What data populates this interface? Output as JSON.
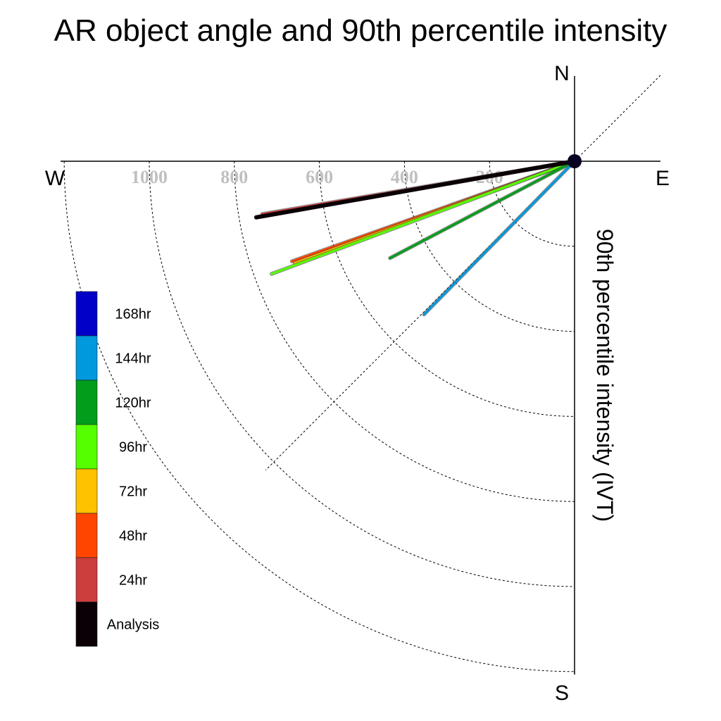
{
  "chart_data": {
    "type": "polar-vector",
    "title": "AR object angle and 90th percentile intensity",
    "radial_label": "90th percentile intensity (IVT)",
    "compass": {
      "north": "N",
      "south": "S",
      "east": "E",
      "west": "W"
    },
    "radial_ticks": [
      200,
      400,
      600,
      800,
      1000
    ],
    "radial_max": 1200,
    "grid": true,
    "legend_position": "left",
    "series": [
      {
        "name": "Analysis",
        "color": "#0a0006",
        "angle_deg": 260.0,
        "intensity": 760
      },
      {
        "name": "24hr",
        "color": "#cc3d3d",
        "angle_deg": 260.4,
        "intensity": 745
      },
      {
        "name": "48hr",
        "color": "#ff4500",
        "angle_deg": 250.5,
        "intensity": 705
      },
      {
        "name": "72hr",
        "color": "#ffc200",
        "angle_deg": 250.0,
        "intensity": 700
      },
      {
        "name": "96hr",
        "color": "#55ff00",
        "angle_deg": 249.6,
        "intensity": 760
      },
      {
        "name": "120hr",
        "color": "#009e1a",
        "angle_deg": 242.3,
        "intensity": 490
      },
      {
        "name": "144hr",
        "color": "#0099dd",
        "angle_deg": 224.5,
        "intensity": 505
      },
      {
        "name": "168hr",
        "color": "#0000c8",
        "angle_deg": 0,
        "intensity": 0
      }
    ]
  }
}
